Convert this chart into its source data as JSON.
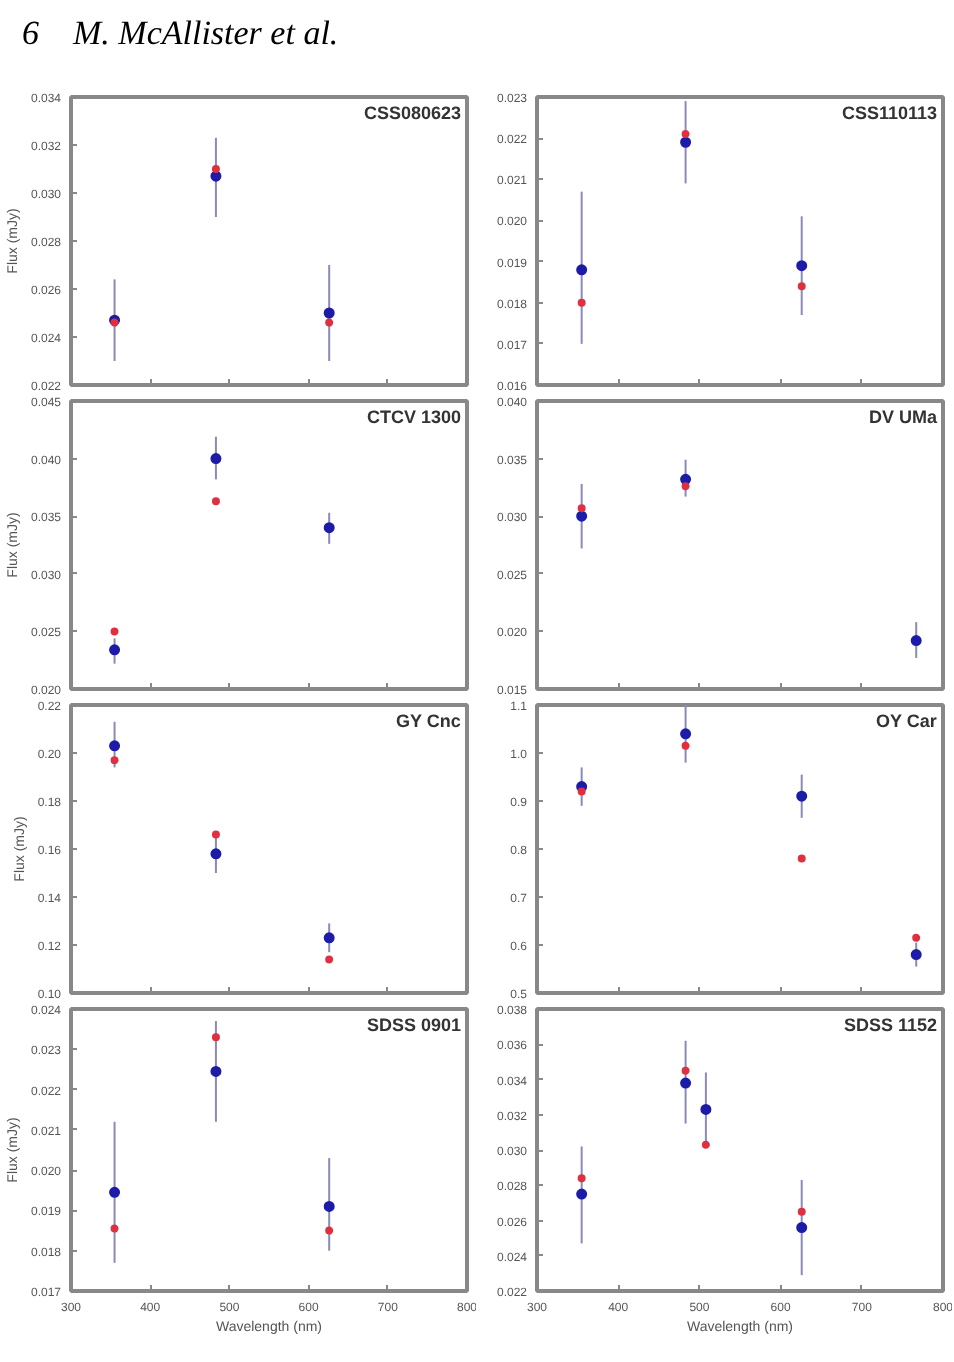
{
  "chart_data": [
    {
      "type": "scatter",
      "annotations": [
        "CSS080623",
        "6",
        "M. McAllister et al."
      ],
      "ylabel": "Flux (mJy)",
      "xlim": [
        300,
        800
      ],
      "xticks": [
        300,
        400,
        500,
        600,
        700,
        800
      ],
      "ylim": [
        0.022,
        0.034
      ],
      "yticks": [
        0.022,
        0.024,
        0.026,
        0.028,
        {
          "value": 0.03,
          "label": "0.030"
        },
        0.032,
        0.034
      ],
      "tick_labels": "y",
      "grid": false,
      "marker": "circle",
      "series": [
        {
          "color": "#1c1ca8",
          "x": [
            355,
            483,
            626
          ],
          "values": [
            0.0247,
            0.0307,
            0.025
          ],
          "errors": [
            [
              0.023,
              0.0264
            ],
            [
              0.029,
              0.0323
            ],
            [
              0.023,
              0.027
            ]
          ]
        },
        {
          "color": "#e03040",
          "x": [
            355,
            483,
            626
          ],
          "values": [
            0.0246,
            0.031,
            0.0246
          ]
        }
      ]
    },
    {
      "type": "scatter",
      "annotations": [
        "CSS110113"
      ],
      "xlim": [
        300,
        800
      ],
      "xticks": [
        300,
        400,
        500,
        600,
        700,
        800
      ],
      "ylim": [
        0.016,
        0.023
      ],
      "yticks": [
        0.016,
        0.017,
        0.018,
        0.019,
        {
          "value": 0.02,
          "label": "0.020"
        },
        0.021,
        0.022,
        0.023
      ],
      "tick_labels": "y",
      "grid": false,
      "marker": "circle",
      "series": [
        {
          "color": "#1c1ca8",
          "x": [
            355,
            483,
            626
          ],
          "values": [
            0.0188,
            0.0219,
            0.0189
          ],
          "errors": [
            [
              0.017,
              0.0207
            ],
            [
              0.0209,
              0.0229
            ],
            [
              0.0177,
              0.0201
            ]
          ]
        },
        {
          "color": "#e03040",
          "x": [
            355,
            483,
            626
          ],
          "values": [
            0.018,
            0.0221,
            0.0184
          ]
        }
      ]
    },
    {
      "type": "scatter",
      "annotations": [
        "CTCV 1300"
      ],
      "ylabel": "Flux (mJy)",
      "xlim": [
        300,
        800
      ],
      "xticks": [
        300,
        400,
        500,
        600,
        700,
        800
      ],
      "ylim": [
        0.02,
        0.045
      ],
      "yticks": [
        {
          "value": 0.02,
          "label": "0.020"
        },
        0.025,
        {
          "value": 0.03,
          "label": "0.030"
        },
        0.035,
        {
          "value": 0.04,
          "label": "0.040"
        },
        0.045
      ],
      "tick_labels": "y",
      "grid": false,
      "marker": "circle",
      "series": [
        {
          "color": "#1c1ca8",
          "x": [
            355,
            483,
            626
          ],
          "values": [
            0.0234,
            0.04,
            0.034
          ],
          "errors": [
            [
              0.0222,
              0.0244
            ],
            [
              0.0382,
              0.0419
            ],
            [
              0.0326,
              0.0353
            ]
          ]
        },
        {
          "color": "#e03040",
          "x": [
            355,
            483
          ],
          "values": [
            0.025,
            0.0363
          ]
        }
      ]
    },
    {
      "type": "scatter",
      "annotations": [
        "DV UMa"
      ],
      "xlim": [
        300,
        800
      ],
      "xticks": [
        300,
        400,
        500,
        600,
        700,
        800
      ],
      "ylim": [
        0.015,
        0.04
      ],
      "yticks": [
        0.015,
        {
          "value": 0.02,
          "label": "0.020"
        },
        0.025,
        {
          "value": 0.03,
          "label": "0.030"
        },
        0.035,
        {
          "value": 0.04,
          "label": "0.040"
        }
      ],
      "tick_labels": "y",
      "grid": false,
      "marker": "circle",
      "series": [
        {
          "color": "#1c1ca8",
          "x": [
            355,
            483,
            767
          ],
          "values": [
            0.03,
            0.0332,
            0.0192
          ],
          "errors": [
            [
              0.0272,
              0.0328
            ],
            [
              0.0317,
              0.0349
            ],
            [
              0.0177,
              0.0208
            ]
          ]
        },
        {
          "color": "#e03040",
          "x": [
            355,
            483
          ],
          "values": [
            0.0307,
            0.0326
          ]
        }
      ]
    },
    {
      "type": "scatter",
      "annotations": [
        "GY Cnc"
      ],
      "ylabel": "Flux (mJy)",
      "xlim": [
        300,
        800
      ],
      "xticks": [
        300,
        400,
        500,
        600,
        700,
        800
      ],
      "ylim": [
        0.1,
        0.22
      ],
      "yticks": [
        {
          "value": 0.1,
          "label": "0.10"
        },
        0.12,
        0.14,
        0.16,
        0.18,
        {
          "value": 0.2,
          "label": "0.20"
        },
        0.22
      ],
      "tick_labels": "y",
      "grid": false,
      "marker": "circle",
      "series": [
        {
          "color": "#1c1ca8",
          "x": [
            355,
            483,
            626
          ],
          "values": [
            0.203,
            0.158,
            0.123
          ],
          "errors": [
            [
              0.194,
              0.213
            ],
            [
              0.15,
              0.165
            ],
            [
              0.117,
              0.129
            ]
          ]
        },
        {
          "color": "#e03040",
          "x": [
            355,
            483,
            626
          ],
          "values": [
            0.197,
            0.166,
            0.114
          ]
        }
      ]
    },
    {
      "type": "scatter",
      "annotations": [
        "OY Car"
      ],
      "xlim": [
        300,
        800
      ],
      "xticks": [
        300,
        400,
        500,
        600,
        700,
        800
      ],
      "ylim": [
        0.5,
        1.1
      ],
      "yticks": [
        0.5,
        0.6,
        0.7,
        0.8,
        0.9,
        {
          "value": 1.0,
          "label": "1.0"
        },
        1.1
      ],
      "tick_labels": "y",
      "grid": false,
      "marker": "circle",
      "series": [
        {
          "color": "#1c1ca8",
          "x": [
            355,
            483,
            626,
            767
          ],
          "values": [
            0.93,
            1.04,
            0.91,
            0.58
          ],
          "errors": [
            [
              0.89,
              0.97
            ],
            [
              0.98,
              1.1
            ],
            [
              0.865,
              0.955
            ],
            [
              0.555,
              0.605
            ]
          ]
        },
        {
          "color": "#e03040",
          "x": [
            355,
            483,
            626,
            767
          ],
          "values": [
            0.92,
            1.015,
            0.78,
            0.615
          ]
        }
      ]
    },
    {
      "type": "scatter",
      "annotations": [
        "SDSS 0901"
      ],
      "ylabel": "Flux (mJy)",
      "xlabel": "Wavelength (nm)",
      "xlim": [
        300,
        800
      ],
      "xticks": [
        300,
        400,
        500,
        600,
        700,
        800
      ],
      "ylim": [
        0.017,
        0.024
      ],
      "yticks": [
        0.017,
        0.018,
        0.019,
        {
          "value": 0.02,
          "label": "0.020"
        },
        0.021,
        0.022,
        0.023,
        0.024
      ],
      "grid": false,
      "marker": "circle",
      "series": [
        {
          "color": "#1c1ca8",
          "x": [
            355,
            483,
            626
          ],
          "values": [
            0.01945,
            0.02245,
            0.0191
          ],
          "errors": [
            [
              0.0177,
              0.0212
            ],
            [
              0.0212,
              0.0237
            ],
            [
              0.018,
              0.0203
            ]
          ]
        },
        {
          "color": "#e03040",
          "x": [
            355,
            483,
            626
          ],
          "values": [
            0.01855,
            0.0233,
            0.0185
          ]
        }
      ]
    },
    {
      "type": "scatter",
      "annotations": [
        "SDSS 1152"
      ],
      "xlabel": "Wavelength (nm)",
      "xlim": [
        300,
        800
      ],
      "xticks": [
        300,
        400,
        500,
        600,
        700,
        800
      ],
      "ylim": [
        0.022,
        0.038
      ],
      "yticks": [
        0.022,
        0.024,
        0.026,
        0.028,
        {
          "value": 0.03,
          "label": "0.030"
        },
        0.032,
        0.034,
        0.036,
        0.038
      ],
      "grid": false,
      "marker": "circle",
      "series": [
        {
          "color": "#1c1ca8",
          "x": [
            355,
            483,
            508,
            626
          ],
          "values": [
            0.0275,
            0.0338,
            0.0323,
            0.0256
          ],
          "errors": [
            [
              0.0247,
              0.0302
            ],
            [
              0.0315,
              0.0362
            ],
            [
              0.0302,
              0.0344
            ],
            [
              0.0229,
              0.0283
            ]
          ]
        },
        {
          "color": "#e03040",
          "x": [
            355,
            483,
            508,
            626
          ],
          "values": [
            0.0284,
            0.0345,
            0.0303,
            0.0265
          ]
        }
      ]
    }
  ]
}
